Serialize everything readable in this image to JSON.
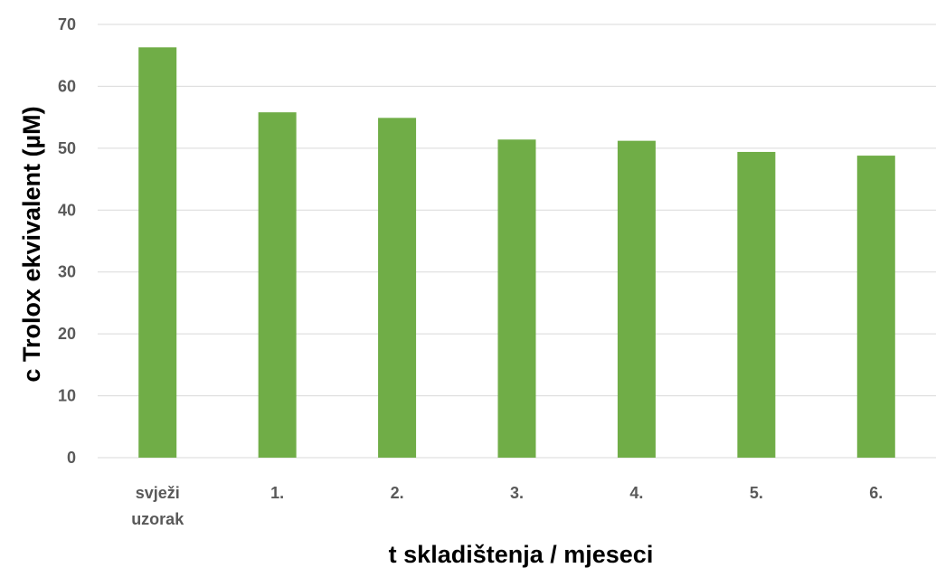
{
  "chart_data": {
    "type": "bar",
    "categories": [
      [
        "svježi",
        "uzorak"
      ],
      [
        "1."
      ],
      [
        "2."
      ],
      [
        "3."
      ],
      [
        "4."
      ],
      [
        "5."
      ],
      [
        "6."
      ]
    ],
    "values": [
      66.3,
      55.8,
      54.9,
      51.4,
      51.2,
      49.4,
      48.8
    ],
    "title": "",
    "xlabel": "t skladištenja / mjeseci",
    "ylabel": "c Trolox ekvivalent (µM)",
    "ylim": [
      0,
      70
    ],
    "yticks": [
      0,
      10,
      20,
      30,
      40,
      50,
      60,
      70
    ],
    "grid": true,
    "legend": "none",
    "bar_color": "#70ad47"
  }
}
